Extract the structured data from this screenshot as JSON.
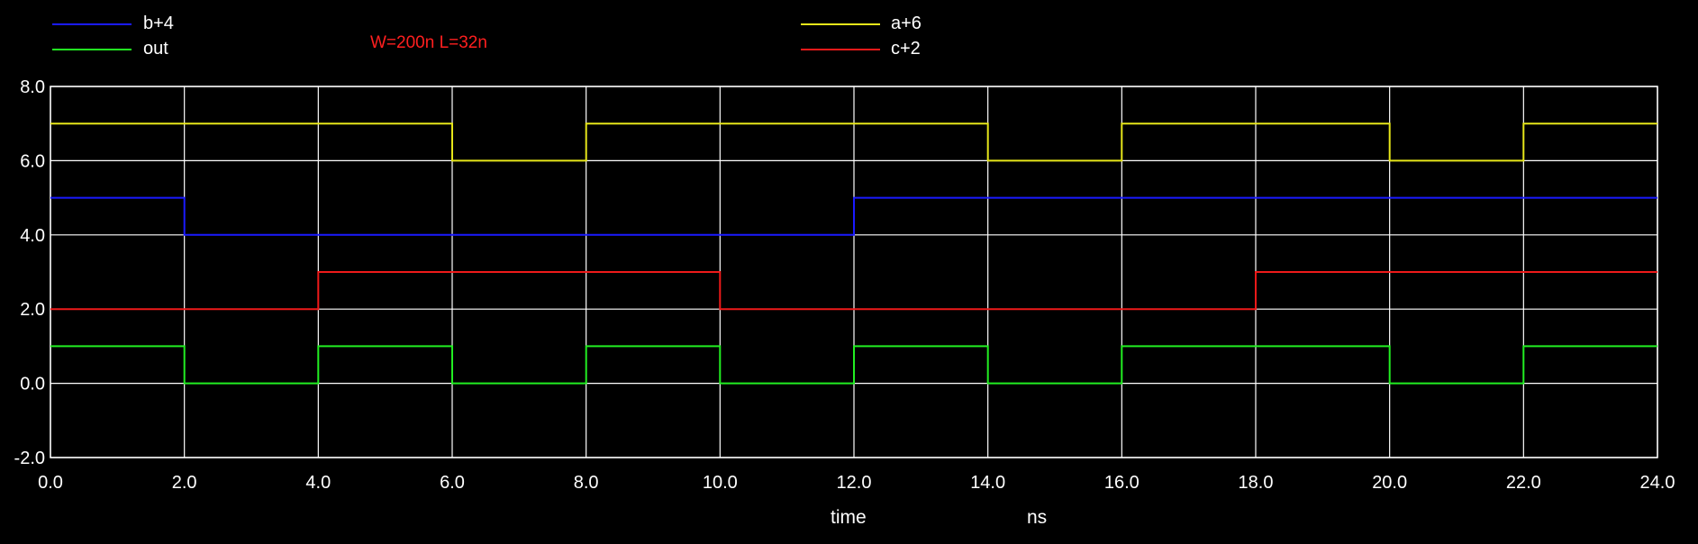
{
  "chart_data": {
    "type": "line",
    "title": "",
    "annotation": "W=200n L=32n",
    "xlabel": "time",
    "xunit": "ns",
    "ylabel": "",
    "xlim": [
      0,
      24
    ],
    "ylim": [
      -2,
      8
    ],
    "xticks": [
      0,
      2,
      4,
      6,
      8,
      10,
      12,
      14,
      16,
      18,
      20,
      22,
      24
    ],
    "yticks": [
      -2,
      0,
      2,
      4,
      6,
      8
    ],
    "xtick_labels": [
      "0.0",
      "2.0",
      "4.0",
      "6.0",
      "8.0",
      "10.0",
      "12.0",
      "14.0",
      "16.0",
      "18.0",
      "20.0",
      "22.0",
      "24.0"
    ],
    "ytick_labels": [
      "-2.0",
      "0.0",
      "2.0",
      "4.0",
      "6.0",
      "8.0"
    ],
    "grid": true,
    "legend": "top",
    "series": [
      {
        "name": "b+4",
        "color": "#1a1aff",
        "x": [
          0,
          2,
          2,
          12,
          12,
          24
        ],
        "y": [
          5,
          5,
          4,
          4,
          5,
          5
        ]
      },
      {
        "name": "out",
        "color": "#22ee22",
        "x": [
          0,
          2,
          2,
          4,
          4,
          6,
          6,
          8,
          8,
          10,
          10,
          12,
          12,
          14,
          14,
          16,
          16,
          20,
          20,
          22,
          22,
          24
        ],
        "y": [
          1,
          1,
          0,
          0,
          1,
          1,
          0,
          0,
          1,
          1,
          0,
          0,
          1,
          1,
          0,
          0,
          1,
          1,
          0,
          0,
          1,
          1
        ]
      },
      {
        "name": "a+6",
        "color": "#e6e61a",
        "x": [
          0,
          6,
          6,
          8,
          8,
          14,
          14,
          16,
          16,
          20,
          20,
          22,
          22,
          24
        ],
        "y": [
          7,
          7,
          6,
          6,
          7,
          7,
          6,
          6,
          7,
          7,
          6,
          6,
          7,
          7
        ]
      },
      {
        "name": "c+2",
        "color": "#ee1a1a",
        "x": [
          0,
          4,
          4,
          10,
          10,
          18,
          18,
          24
        ],
        "y": [
          2,
          2,
          3,
          3,
          2,
          2,
          3,
          3
        ]
      }
    ]
  }
}
